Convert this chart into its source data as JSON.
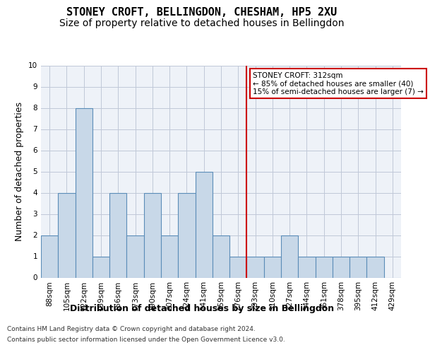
{
  "title": "STONEY CROFT, BELLINGDON, CHESHAM, HP5 2XU",
  "subtitle": "Size of property relative to detached houses in Bellingdon",
  "xlabel": "Distribution of detached houses by size in Bellingdon",
  "ylabel": "Number of detached properties",
  "bar_labels": [
    "88sqm",
    "105sqm",
    "122sqm",
    "139sqm",
    "156sqm",
    "173sqm",
    "190sqm",
    "207sqm",
    "224sqm",
    "241sqm",
    "259sqm",
    "276sqm",
    "293sqm",
    "310sqm",
    "327sqm",
    "344sqm",
    "361sqm",
    "378sqm",
    "395sqm",
    "412sqm",
    "429sqm"
  ],
  "bar_values": [
    2,
    4,
    8,
    1,
    4,
    2,
    4,
    2,
    4,
    5,
    2,
    1,
    1,
    1,
    2,
    1,
    1,
    1,
    1,
    1,
    0
  ],
  "bar_color": "#c8d8e8",
  "bar_edgecolor": "#5b8db8",
  "vline_color": "#cc0000",
  "vline_x": 11.5,
  "annotation_text": "STONEY CROFT: 312sqm\n← 85% of detached houses are smaller (40)\n15% of semi-detached houses are larger (7) →",
  "annotation_box_color": "#cc0000",
  "ylim": [
    0,
    10
  ],
  "yticks": [
    0,
    1,
    2,
    3,
    4,
    5,
    6,
    7,
    8,
    9,
    10
  ],
  "footer_line1": "Contains HM Land Registry data © Crown copyright and database right 2024.",
  "footer_line2": "Contains public sector information licensed under the Open Government Licence v3.0.",
  "grid_color": "#c0c8d8",
  "background_color": "#eef2f8",
  "title_fontsize": 11,
  "subtitle_fontsize": 10,
  "tick_fontsize": 7.5,
  "ylabel_fontsize": 9,
  "xlabel_fontsize": 9,
  "footer_fontsize": 6.5
}
